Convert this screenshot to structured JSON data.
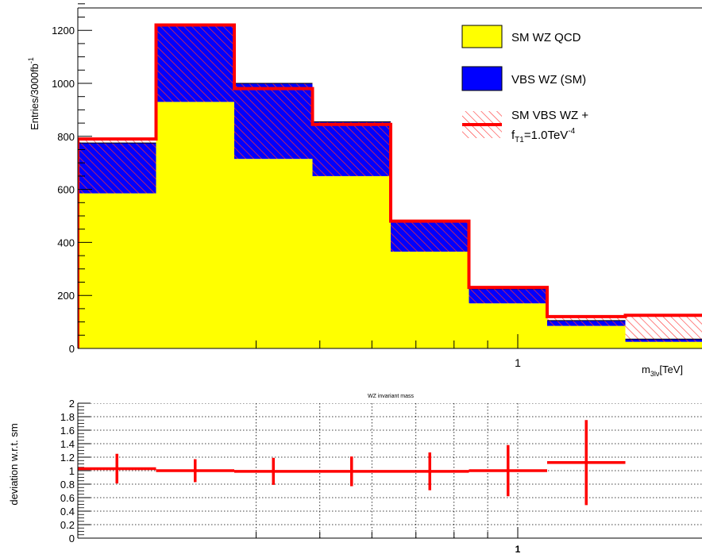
{
  "chart_data": [
    {
      "type": "bar",
      "bins": [
        {
          "x_low": 0.295,
          "x_high": 0.395,
          "qcd": 585,
          "vbs_sm": 775,
          "total": 790
        },
        {
          "x_low": 0.395,
          "x_high": 0.495,
          "qcd": 930,
          "vbs_sm": 1220,
          "total": 1220
        },
        {
          "x_low": 0.495,
          "x_high": 0.595,
          "qcd": 715,
          "vbs_sm": 1000,
          "total": 980
        },
        {
          "x_low": 0.595,
          "x_high": 0.695,
          "qcd": 650,
          "vbs_sm": 855,
          "total": 845
        },
        {
          "x_low": 0.695,
          "x_high": 0.795,
          "qcd": 365,
          "vbs_sm": 480,
          "total": 480
        },
        {
          "x_low": 0.795,
          "x_high": 0.895,
          "qcd": 170,
          "vbs_sm": 225,
          "total": 230
        },
        {
          "x_low": 0.895,
          "x_high": 0.995,
          "qcd": 85,
          "vbs_sm": 105,
          "total": 120
        },
        {
          "x_low": 0.995,
          "x_high": 1.095,
          "qcd": 25,
          "vbs_sm": 35,
          "total": 125
        }
      ],
      "series": [
        {
          "name": "SM WZ QCD",
          "color": "#ffff00"
        },
        {
          "name": "VBS WZ (SM)",
          "color": "#0000ff"
        },
        {
          "name": "SM VBS WZ + f_T1=1.0TeV^-4",
          "color": "#ff0000"
        }
      ],
      "ylabel": "Entries/3000fb",
      "ylabel_sup": "-1",
      "xlabel": "m",
      "xlabel_sub": "3lν",
      "xlabel_unit": "[TeV]",
      "ylim": [
        0,
        1300
      ],
      "yticks": [
        0,
        200,
        400,
        600,
        800,
        1000,
        1200
      ],
      "xtick_label": "1",
      "legend_position": "top-right",
      "legend": {
        "qcd": "SM WZ QCD",
        "vbs": "VBS WZ (SM)",
        "bsm_line1": "SM VBS WZ +",
        "bsm_f": "f",
        "bsm_sub": "T1",
        "bsm_rest": "=1.0TeV",
        "bsm_sup": "-4"
      }
    },
    {
      "type": "scatter",
      "title": "WZ invariant mass",
      "ylabel": "deviation w.r.t. sm",
      "ylim": [
        0,
        2
      ],
      "yticks": [
        "0",
        "0.2",
        "0.4",
        "0.6",
        "0.8",
        "1",
        "1.2",
        "1.4",
        "1.6",
        "1.8",
        "2"
      ],
      "xtick_label": "1",
      "grid": true,
      "points": [
        {
          "x_low": 0.295,
          "x_high": 0.395,
          "y": 1.03,
          "err": 0.22
        },
        {
          "x_low": 0.395,
          "x_high": 0.495,
          "y": 1.0,
          "err": 0.17
        },
        {
          "x_low": 0.495,
          "x_high": 0.595,
          "y": 0.99,
          "err": 0.2
        },
        {
          "x_low": 0.595,
          "x_high": 0.695,
          "y": 0.99,
          "err": 0.22
        },
        {
          "x_low": 0.695,
          "x_high": 0.795,
          "y": 0.99,
          "err": 0.28
        },
        {
          "x_low": 0.795,
          "x_high": 0.895,
          "y": 1.0,
          "err": 0.38
        },
        {
          "x_low": 0.895,
          "x_high": 0.995,
          "y": 1.12,
          "err": 0.63
        }
      ]
    }
  ]
}
